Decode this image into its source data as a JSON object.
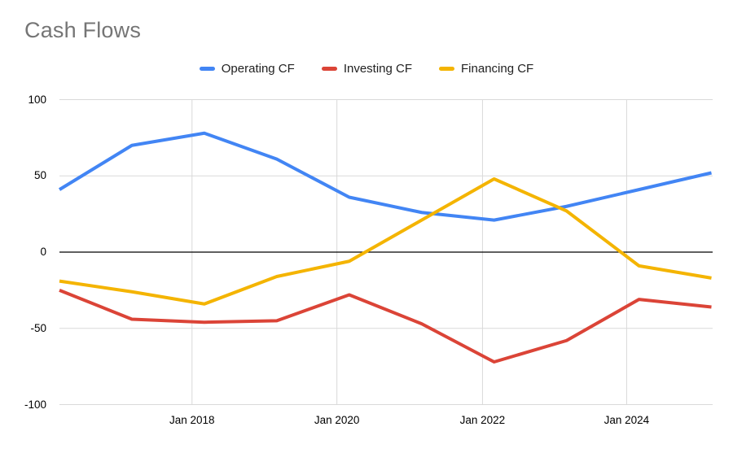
{
  "title": "Cash Flows",
  "colors": {
    "background": "#ffffff",
    "title_text": "#757575",
    "axis_text": "#000000",
    "gridline": "#d9d9d9",
    "zero_line": "#000000"
  },
  "legend": {
    "position": "top-center",
    "items": [
      {
        "label": "Operating CF",
        "color": "#4285F4"
      },
      {
        "label": "Investing CF",
        "color": "#DB4437"
      },
      {
        "label": "Financing CF",
        "color": "#F4B400"
      }
    ]
  },
  "chart_data": {
    "type": "line",
    "title": "Cash Flows",
    "x_implied_years": [
      2016,
      2017,
      2018,
      2019,
      2020,
      2021,
      2022,
      2023,
      2024,
      2025
    ],
    "series": [
      {
        "name": "Operating CF",
        "color": "#4285F4",
        "values": [
          41,
          70,
          78,
          61,
          36,
          26,
          21,
          30,
          41,
          52
        ]
      },
      {
        "name": "Investing CF",
        "color": "#DB4437",
        "values": [
          -25,
          -44,
          -46,
          -45,
          -28,
          -47,
          -72,
          -58,
          -31,
          -36
        ]
      },
      {
        "name": "Financing CF",
        "color": "#F4B400",
        "values": [
          -19,
          -26,
          -34,
          -16,
          -6,
          21,
          48,
          27,
          -9,
          -17
        ]
      }
    ],
    "x_axis": {
      "tick_labels": [
        "Jan 2018",
        "Jan 2020",
        "Jan 2022",
        "Jan 2024"
      ],
      "tick_point_positions": [
        1.83,
        3.83,
        5.84,
        7.83
      ]
    },
    "y_axis": {
      "ticks": [
        100,
        50,
        0,
        -50,
        -100
      ],
      "min": -100,
      "max": 100,
      "zero_line": true
    },
    "grid": true,
    "legend_position": "top",
    "line_width": 4,
    "markers": false
  }
}
